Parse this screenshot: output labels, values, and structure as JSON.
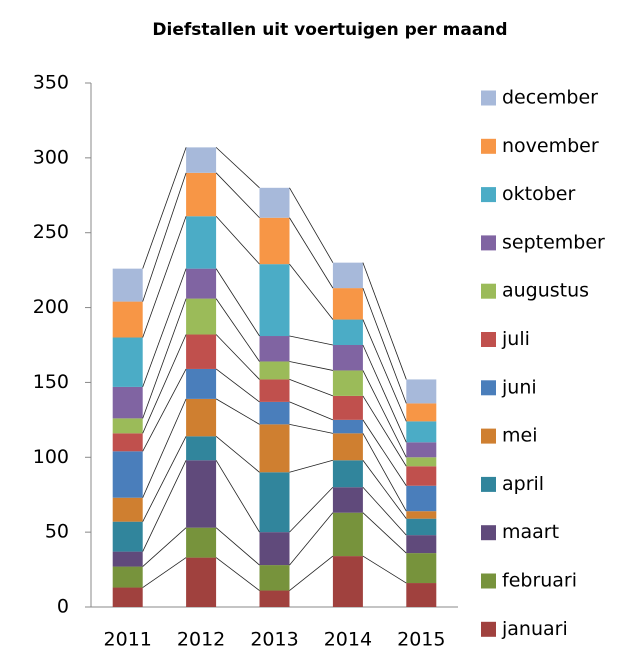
{
  "chart_data": {
    "type": "stacked_bar",
    "title": "Diefstallen uit voertuigen per maand",
    "categories": [
      "2011",
      "2012",
      "2013",
      "2014",
      "2015"
    ],
    "ylim": [
      0,
      350
    ],
    "yticks": [
      0,
      50,
      100,
      150,
      200,
      250,
      300,
      350
    ],
    "grid": false,
    "legend": "right",
    "series_lines": true,
    "series": [
      {
        "name": "januari",
        "color": "#a0413e",
        "values": [
          13,
          33,
          11,
          34,
          16
        ]
      },
      {
        "name": "februari",
        "color": "#77933c",
        "values": [
          14,
          20,
          17,
          29,
          20
        ]
      },
      {
        "name": "maart",
        "color": "#604a7b",
        "values": [
          10,
          45,
          22,
          17,
          12
        ]
      },
      {
        "name": "april",
        "color": "#31859c",
        "values": [
          20,
          16,
          40,
          18,
          11
        ]
      },
      {
        "name": "mei",
        "color": "#cf7f30",
        "values": [
          16,
          25,
          32,
          18,
          5
        ]
      },
      {
        "name": "juni",
        "color": "#4a7ebb",
        "values": [
          31,
          20,
          15,
          9,
          17
        ]
      },
      {
        "name": "juli",
        "color": "#c0504d",
        "values": [
          12,
          23,
          15,
          16,
          13
        ]
      },
      {
        "name": "augustus",
        "color": "#9bbb59",
        "values": [
          10,
          24,
          12,
          17,
          6
        ]
      },
      {
        "name": "september",
        "color": "#8064a2",
        "values": [
          21,
          20,
          17,
          17,
          10
        ]
      },
      {
        "name": "oktober",
        "color": "#4bacc6",
        "values": [
          33,
          35,
          48,
          17,
          14
        ]
      },
      {
        "name": "november",
        "color": "#f79646",
        "values": [
          24,
          29,
          31,
          21,
          12
        ]
      },
      {
        "name": "december",
        "color": "#a7b9da",
        "values": [
          22,
          17,
          20,
          17,
          16
        ]
      }
    ]
  }
}
